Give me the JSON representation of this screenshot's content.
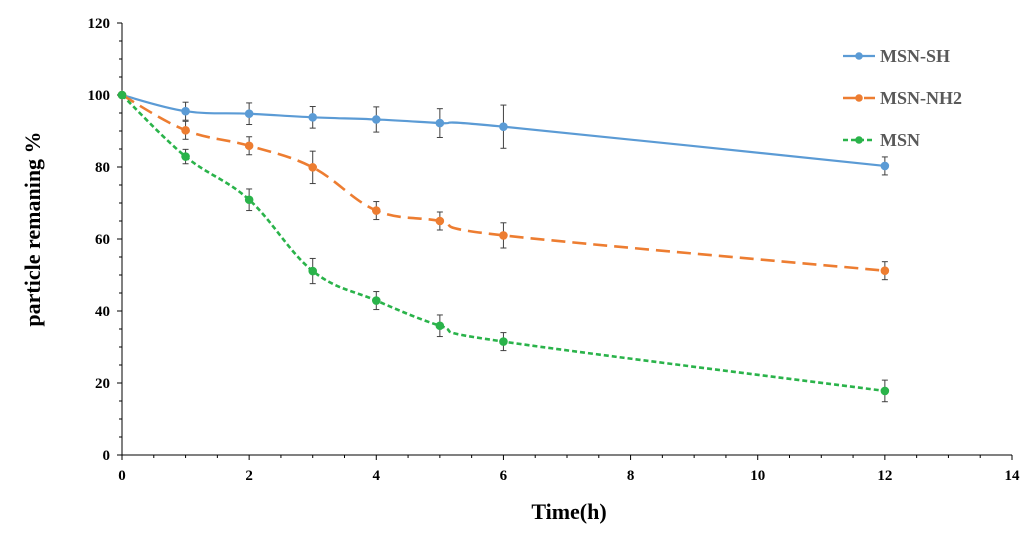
{
  "chart_data": {
    "type": "line",
    "title": "",
    "xlabel": "Time(h)",
    "ylabel": "particle remaning %",
    "xlim": [
      0,
      14
    ],
    "ylim": [
      0,
      120
    ],
    "xticks": [
      0,
      2,
      4,
      6,
      8,
      10,
      12,
      14
    ],
    "yticks": [
      0,
      20,
      40,
      60,
      80,
      100,
      120
    ],
    "grid": false,
    "legend_position": "top-right",
    "series": [
      {
        "name": "MSN-SH",
        "color": "#5b9bd5",
        "line_style": "solid",
        "x": [
          0,
          1,
          2,
          3,
          4,
          5,
          6,
          12
        ],
        "y": [
          100,
          95.5,
          94.8,
          93.8,
          93.2,
          92.2,
          91.2,
          80.3
        ],
        "error": [
          0,
          2.5,
          3.0,
          3.0,
          3.5,
          4.0,
          6.0,
          2.5
        ]
      },
      {
        "name": "MSN-NH2",
        "color": "#ed7d31",
        "line_style": "dashed",
        "x": [
          0,
          1,
          2,
          3,
          4,
          5,
          6,
          12
        ],
        "y": [
          100,
          90.2,
          85.9,
          79.9,
          67.9,
          65.0,
          61.0,
          51.2
        ],
        "error": [
          0,
          2.5,
          2.5,
          4.5,
          2.5,
          2.5,
          3.5,
          2.5
        ]
      },
      {
        "name": "MSN",
        "color": "#2ab34a",
        "line_style": "dotted",
        "x": [
          0,
          1,
          2,
          3,
          4,
          5,
          6,
          12
        ],
        "y": [
          100,
          82.9,
          70.9,
          51.1,
          42.9,
          35.9,
          31.5,
          17.8
        ],
        "error": [
          0,
          2.0,
          3.0,
          3.5,
          2.5,
          3.0,
          2.5,
          3.0
        ]
      }
    ]
  }
}
